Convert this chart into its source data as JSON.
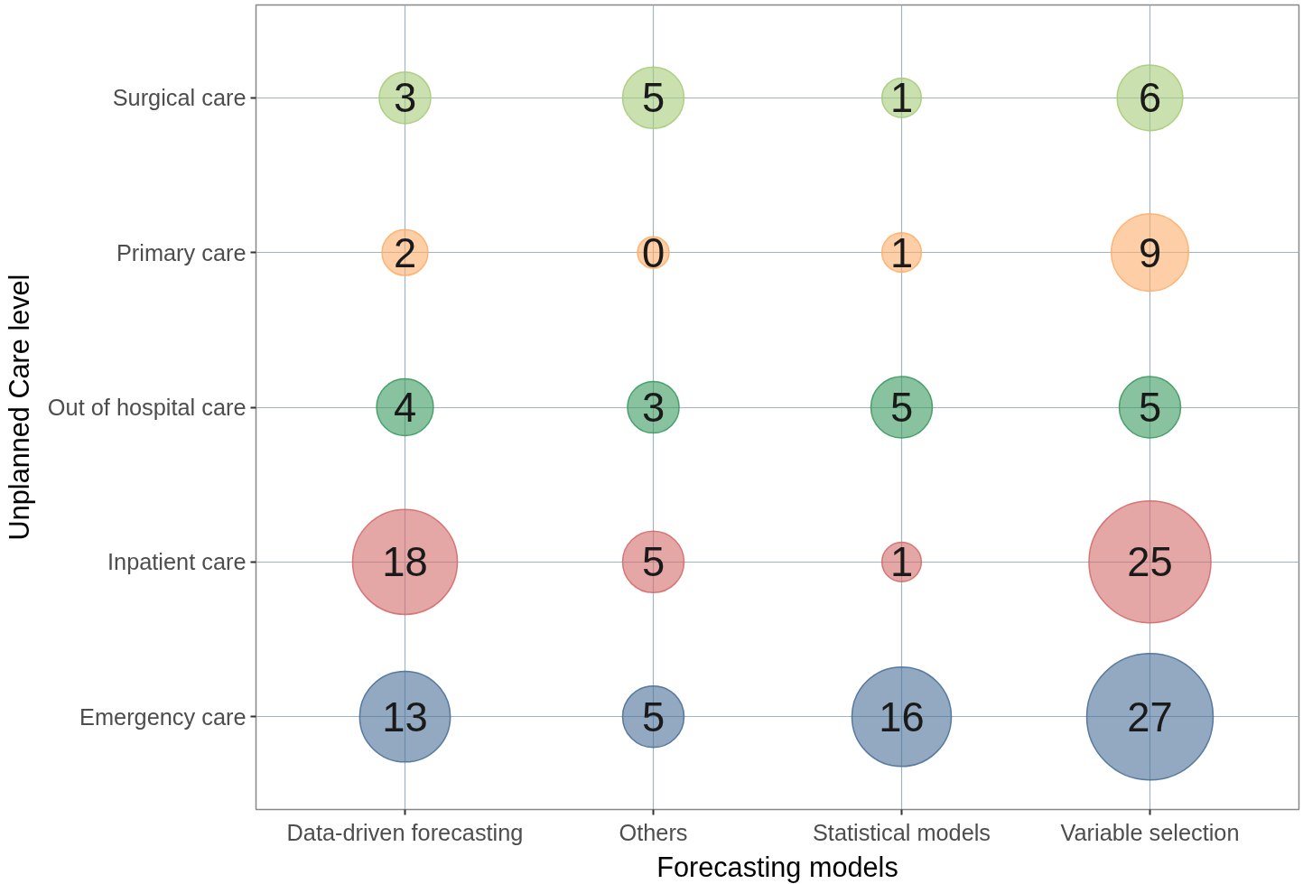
{
  "chart_data": {
    "type": "heatmap",
    "xlabel": "Forecasting models",
    "ylabel": "Unplanned Care level",
    "categories": [
      "Data-driven forecasting",
      "Others",
      "Statistical models",
      "Variable selection"
    ],
    "y_categories": [
      "Surgical care",
      "Primary care",
      "Out of hospital care",
      "Inpatient care",
      "Emergency care"
    ],
    "cells": [
      [
        3,
        5,
        1,
        6
      ],
      [
        2,
        0,
        1,
        9
      ],
      [
        4,
        3,
        5,
        5
      ],
      [
        18,
        5,
        1,
        25
      ],
      [
        13,
        5,
        16,
        27
      ]
    ],
    "colors": [
      "#a6cc7a",
      "#fdae6b",
      "#3a9a5e",
      "#d46a6a",
      "#4a6f98"
    ],
    "data_labels": true,
    "grid": true
  }
}
